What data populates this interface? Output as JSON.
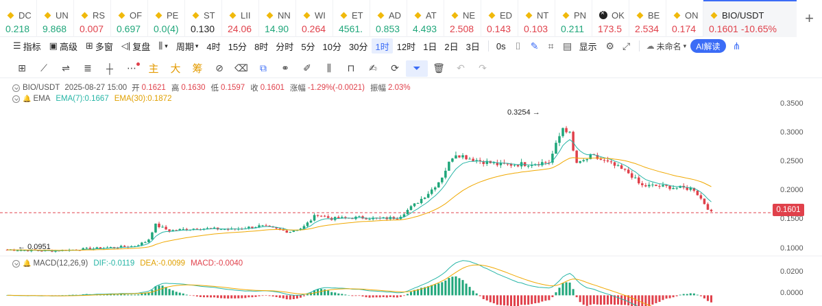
{
  "tickers": [
    {
      "sym": "DC",
      "val": "0.218",
      "dir": "up"
    },
    {
      "sym": "UN",
      "val": "9.868",
      "dir": "up"
    },
    {
      "sym": "RS",
      "val": "0.007",
      "dir": "down"
    },
    {
      "sym": "OF",
      "val": "0.697",
      "dir": "up"
    },
    {
      "sym": "PE",
      "val": "0.0(4)",
      "dir": "up"
    },
    {
      "sym": "ST",
      "val": "0.130",
      "dir": "flat"
    },
    {
      "sym": "LII",
      "val": "24.06",
      "dir": "down"
    },
    {
      "sym": "NN",
      "val": "14.90",
      "dir": "up"
    },
    {
      "sym": "WI",
      "val": "0.264",
      "dir": "down"
    },
    {
      "sym": "ET",
      "val": "4561.",
      "dir": "up"
    },
    {
      "sym": "AD",
      "val": "0.853",
      "dir": "up"
    },
    {
      "sym": "AT",
      "val": "4.493",
      "dir": "up"
    },
    {
      "sym": "NE",
      "val": "2.508",
      "dir": "down"
    },
    {
      "sym": "ED",
      "val": "0.143",
      "dir": "down"
    },
    {
      "sym": "NT",
      "val": "0.103",
      "dir": "down"
    },
    {
      "sym": "PN",
      "val": "0.211",
      "dir": "up"
    },
    {
      "sym": "OK",
      "val": "173.5",
      "dir": "down",
      "dark": true
    },
    {
      "sym": "BE",
      "val": "2.534",
      "dir": "down"
    },
    {
      "sym": "ON",
      "val": "0.174",
      "dir": "down"
    }
  ],
  "active_ticker": {
    "sym": "BIO/USDT",
    "price": "0.1601",
    "change": "-10.65%"
  },
  "add_tab_label": "+",
  "toolbar": {
    "indicators": "指标",
    "advanced": "高级",
    "multi_window": "多窗",
    "replay": "复盘",
    "period": "周期",
    "periods": [
      "4时",
      "15分",
      "8时",
      "分时",
      "5分",
      "10分",
      "30分",
      "1时",
      "12时",
      "1日",
      "2日",
      "3日"
    ],
    "active_period": "1时",
    "zero_s": "0s",
    "display": "显示",
    "layout_name": "未命名",
    "ai": "AI解读"
  },
  "drawing_tools_cn": [
    "主",
    "大",
    "筹"
  ],
  "legend": {
    "symbol": "BIO/USDT",
    "datetime": "2025-08-27 15:00",
    "open_k": "开",
    "open": "0.1621",
    "high_k": "高",
    "high": "0.1630",
    "low_k": "低",
    "low": "0.1597",
    "close_k": "收",
    "close": "0.1601",
    "chg_k": "涨幅",
    "chg": "-1.29%(-0.0021)",
    "amp_k": "振幅",
    "amp": "2.03%"
  },
  "ema": {
    "label": "EMA",
    "ema7": "EMA(7):0.1667",
    "ema30": "EMA(30):0.1872"
  },
  "macd": {
    "label": "MACD(12,26,9)",
    "dif": "DIF:-0.0119",
    "dea": "DEA:-0.0099",
    "macd": "MACD:-0.0040"
  },
  "price_axis": [
    "0.3500",
    "0.3000",
    "0.2500",
    "0.2000",
    "0.1500",
    "0.1000"
  ],
  "macd_axis": [
    "0.0200",
    "0.0000"
  ],
  "current_price_tag": "0.1601",
  "annotations": {
    "high": "0.3254",
    "low": "0.0951"
  },
  "colors": {
    "up": "#1fa67a",
    "down": "#e0414b",
    "ema7": "#26b5a6",
    "ema30": "#f0a800",
    "accent": "#3b6cf6"
  },
  "chart_data": {
    "type": "candlestick",
    "series": [
      {
        "name": "EMA(7)"
      },
      {
        "name": "EMA(30)"
      }
    ],
    "ylim": [
      0.09,
      0.36
    ],
    "current": 0.1601,
    "high": 0.3254,
    "low": 0.0951,
    "macd_ylim": [
      -0.006,
      0.022
    ]
  }
}
